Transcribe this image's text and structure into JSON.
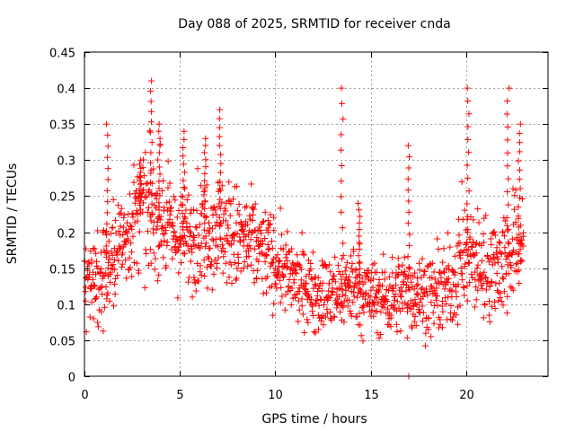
{
  "chart_data": {
    "type": "scatter",
    "title": "Day 088 of 2025, SRMTID for receiver cnda",
    "xlabel": "GPS time / hours",
    "ylabel": "SRMTID / TECUs",
    "xlim": [
      0,
      24.3
    ],
    "ylim": [
      0,
      0.45
    ],
    "xticks": [
      0,
      5,
      10,
      15,
      20
    ],
    "xtick_labels": [
      "0",
      "5",
      "10",
      "15",
      "20"
    ],
    "yticks": [
      0,
      0.05,
      0.1,
      0.15,
      0.2,
      0.25,
      0.3,
      0.35,
      0.4,
      0.45
    ],
    "ytick_labels": [
      "0",
      "0.05",
      "0.1",
      "0.15",
      "0.2",
      "0.25",
      "0.3",
      "0.35",
      "0.4",
      "0.45"
    ],
    "grid": true,
    "marker": "plus",
    "color": "#ff0000",
    "series": [
      {
        "name": "SRMTID",
        "x_start": 0,
        "x_end": 23,
        "x_step": 0.05,
        "trend": {
          "x": [
            0,
            1,
            2,
            3,
            4,
            5,
            6,
            7,
            8,
            9,
            10,
            11,
            12,
            13,
            14,
            15,
            16,
            17,
            18,
            19,
            20,
            21,
            22,
            23
          ],
          "center": [
            0.13,
            0.14,
            0.19,
            0.23,
            0.22,
            0.19,
            0.2,
            0.21,
            0.19,
            0.18,
            0.16,
            0.13,
            0.12,
            0.11,
            0.13,
            0.11,
            0.11,
            0.12,
            0.11,
            0.12,
            0.17,
            0.15,
            0.16,
            0.19
          ],
          "spread": [
            0.035,
            0.05,
            0.045,
            0.055,
            0.05,
            0.045,
            0.05,
            0.05,
            0.05,
            0.045,
            0.04,
            0.035,
            0.035,
            0.035,
            0.04,
            0.035,
            0.035,
            0.04,
            0.035,
            0.04,
            0.055,
            0.045,
            0.055,
            0.05
          ]
        },
        "peaks": [
          {
            "x": 1.2,
            "y": 0.35
          },
          {
            "x": 2.9,
            "y": 0.3
          },
          {
            "x": 3.5,
            "y": 0.41
          },
          {
            "x": 3.9,
            "y": 0.35
          },
          {
            "x": 5.2,
            "y": 0.34
          },
          {
            "x": 6.3,
            "y": 0.33
          },
          {
            "x": 7.1,
            "y": 0.37
          },
          {
            "x": 13.5,
            "y": 0.4
          },
          {
            "x": 14.4,
            "y": 0.24
          },
          {
            "x": 17.0,
            "y": 0.32
          },
          {
            "x": 20.1,
            "y": 0.4
          },
          {
            "x": 22.2,
            "y": 0.4
          },
          {
            "x": 22.8,
            "y": 0.35
          }
        ],
        "minimum": {
          "x": 17.0,
          "y": 0.0
        }
      }
    ]
  }
}
